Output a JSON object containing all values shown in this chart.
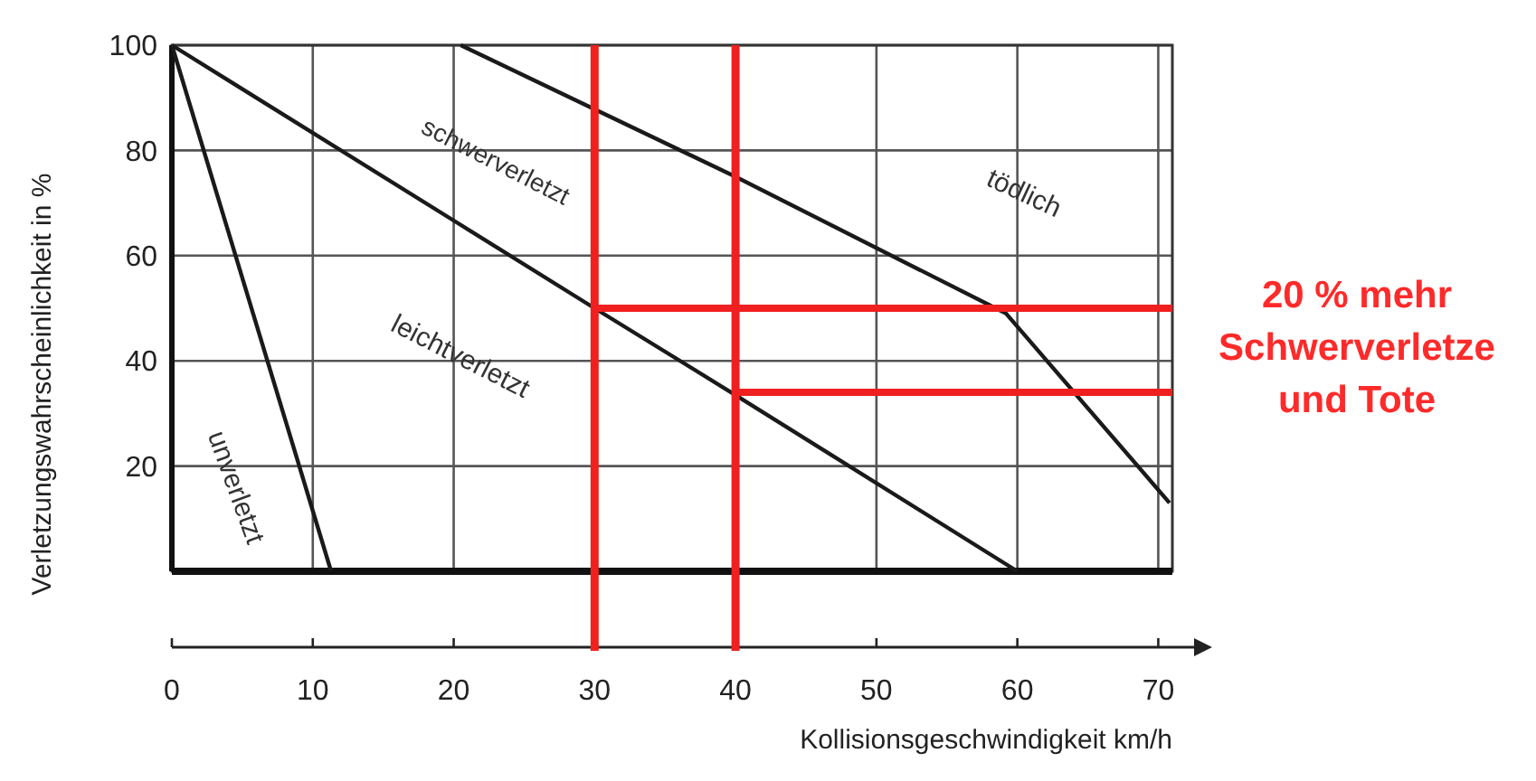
{
  "chart_data": {
    "type": "line",
    "xlabel": "Kollisionsgeschwindigkeit km/h",
    "ylabel": "Verletzungswahrscheinlichkeit in %",
    "xlim": [
      0,
      71
    ],
    "ylim": [
      0,
      100
    ],
    "xticks": [
      0,
      10,
      20,
      30,
      40,
      50,
      60,
      70
    ],
    "yticks": [
      20,
      40,
      60,
      80,
      100
    ],
    "grid": true,
    "marker": "none",
    "line_style": "solid",
    "series": [
      {
        "color": "#1a1a1a",
        "x": [
          0,
          11.3
        ],
        "values": [
          100,
          0
        ]
      },
      {
        "color": "#1a1a1a",
        "x": [
          0,
          30,
          40,
          60
        ],
        "values": [
          100,
          50,
          33.5,
          0
        ]
      },
      {
        "color": "#1a1a1a",
        "x": [
          20.5,
          40,
          59.2,
          70.8
        ],
        "values": [
          100,
          75,
          49,
          13
        ]
      },
      {
        "color": "#f02020",
        "x": [
          30,
          71
        ],
        "values": [
          50,
          50
        ]
      },
      {
        "color": "#f02020",
        "x": [
          40,
          71
        ],
        "values": [
          34,
          34
        ]
      }
    ],
    "ref_lines": [
      {
        "axis": "x",
        "value": 30,
        "color": "#f02020"
      },
      {
        "axis": "x",
        "value": 40,
        "color": "#f02020"
      }
    ],
    "annotations": [
      "unverletzt",
      "leichtverletzt",
      "schwerverletzt",
      "tödlich",
      "20 % mehr Schwerverletze und Tote"
    ]
  }
}
